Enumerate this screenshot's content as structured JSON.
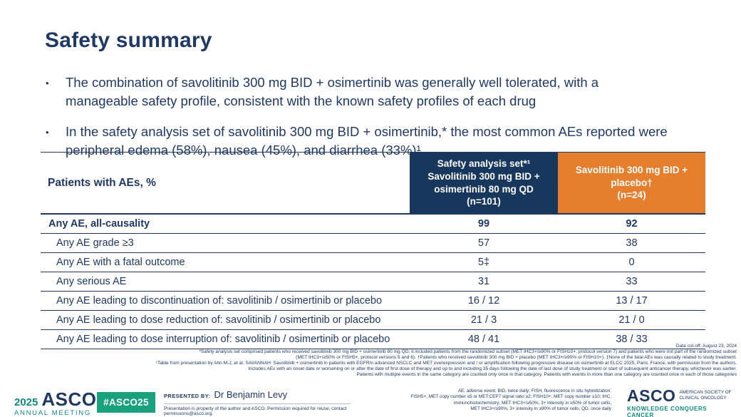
{
  "colors": {
    "navy": "#1F3864",
    "table-navy": "#17375D",
    "orange": "#E57E2D",
    "teal": "#0E8C7F",
    "badge-green": "#18A17C"
  },
  "slide": {
    "title": "Safety summary",
    "bullet_marker": "•",
    "bullets": [
      "The combination of savolitinib 300 mg BID + osimertinib was generally well tolerated, with a\nmanageable safety profile, consistent with the known safety profiles of each drug",
      "In the safety analysis set of savolitinib 300 mg BID + osimertinib,* the most common AEs reported were\nperipheral edema (58%), nausea (45%), and diarrhea (33%)¹"
    ]
  },
  "table": {
    "row_header": "Patients with AEs, %",
    "col_combo_header": "Safety analysis set*¹\nSavolitinib 300 mg BID +\nosimertinib 80 mg QD\n(n=101)",
    "col_placebo_header": "Savolitinib 300 mg BID +\nplacebo†\n(n=24)",
    "rows": [
      {
        "label": "Any AE, all-causality",
        "combo": "99",
        "placebo": "92"
      },
      {
        "label": "Any AE grade ≥3",
        "combo": "57",
        "placebo": "38"
      },
      {
        "label": "Any AE with a fatal outcome",
        "combo": "5‡",
        "placebo": "0"
      },
      {
        "label": "Any serious AE",
        "combo": "31",
        "placebo": "33"
      },
      {
        "label": "Any AE leading to discontinuation of: savolitinib / osimertinib or placebo",
        "combo": "16 / 12",
        "placebo": "13 / 17"
      },
      {
        "label": "Any AE leading to dose reduction of: savolitinib / osimertinib or placebo",
        "combo": "21 / 3",
        "placebo": "21 / 0"
      },
      {
        "label": "Any AE leading to dose interruption of: savolitinib / osimertinib or placebo",
        "combo": "48 / 41",
        "placebo": "38 / 33"
      }
    ]
  },
  "footnotes": {
    "lines": [
      "Data cut-off: August 23, 2024",
      "*Safety analysis set comprised patients who received savolitinib 300 mg BID + osimertinib 80 mg QD; it included patients from the randomized subset (MET IHC3+/≥90% or FISH10+; protocol version 7) and patients who were not part of the randomized subset",
      "(MET IHC3+/≥50% or FISH5+, protocol versions 5 and 6). †Patients who received savolitinib 300 mg BID + placebo (MET IHC3+/≥90% or FISH10+). ‡None of the fatal AEs was causally related to study treatment.",
      "¹Table from presentation by Ahn M-J, et al. SAVANNAH: Savolitinib + osimertinib in patients with EGFRm advanced NSCLC and MET overexpression and / or amplification following progressive disease on osimertinib at ELCC 2025, Paris, France, with permission from the authors.",
      "Includes AEs with an onset date or worsening on or after the date of first dose of therapy and up to and including 35 days following the date of last dose of study treatment or start of subsequent anticancer therapy, whichever was earlier.",
      "Patients with multiple events in the same category are counted only once in that category. Patients with events in more than one category are counted once in each of those categories"
    ]
  },
  "footer": {
    "meeting_year": "2025",
    "meeting_org": "ASCO",
    "meeting_name": "ANNUAL MEETING",
    "hashtag": "#ASCO25",
    "presented_by_label": "PRESENTED BY:",
    "presenter": "Dr Benjamin Levy",
    "permission": "Presentation is property of the author and ASCO. Permission required for reuse; contact permissions@asco.org.",
    "abbreviations": "AE, adverse event; BID, twice daily; FISH, fluorescence in situ hybridization;\nFISH5+, MET copy number ≥5 or MET:CEP7 signal ratio ≥2; FISH10+, MET copy number ≥10; IHC,\nimmunohistochemistry; MET IHC3+/≥50%, 3+ intensity in ≥50% of tumor cells;\nMET IHC3+/≥90%, 3+ intensity in ≥90% of tumor cells; QD, once daily",
    "asco_word": "ASCO",
    "asco_tagline": "AMERICAN SOCIETY OF\nCLINICAL ONCOLOGY",
    "asco_motto": "KNOWLEDGE CONQUERS CANCER"
  }
}
